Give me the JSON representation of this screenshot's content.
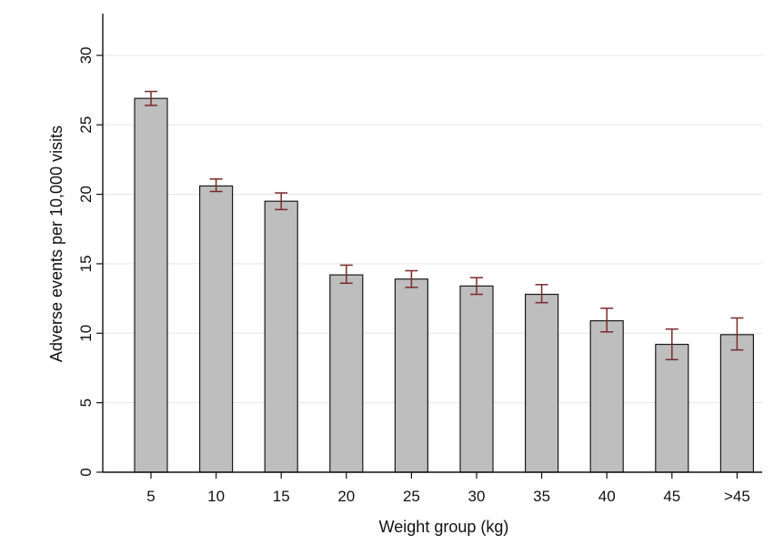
{
  "chart_data": {
    "type": "bar",
    "title": "",
    "xlabel": "Weight group (kg)",
    "ylabel": "Adverse events per 10,000 visits",
    "categories": [
      "5",
      "10",
      "15",
      "20",
      "25",
      "30",
      "35",
      "40",
      "45",
      ">45"
    ],
    "values": [
      26.9,
      20.6,
      19.5,
      14.2,
      13.9,
      13.4,
      12.8,
      10.9,
      9.2,
      9.9
    ],
    "error_low": [
      26.4,
      20.2,
      18.9,
      13.6,
      13.3,
      12.8,
      12.2,
      10.1,
      8.1,
      8.8
    ],
    "error_high": [
      27.4,
      21.1,
      20.1,
      14.9,
      14.5,
      14.0,
      13.5,
      11.8,
      10.3,
      11.1
    ],
    "ylim": [
      0,
      33
    ],
    "yticks": [
      0,
      5,
      10,
      15,
      20,
      25,
      30
    ],
    "grid": true,
    "legend": "none",
    "colors": {
      "bar_fill": "#bebebe",
      "bar_stroke": "#1a1a1a",
      "error_bar": "#7a2a2a",
      "grid": "#e6e6e6"
    }
  }
}
